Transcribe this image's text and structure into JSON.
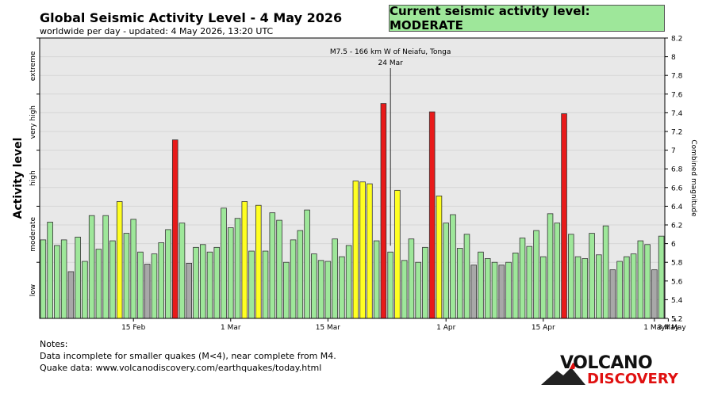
{
  "header": {
    "title": "Global Seismic Activity Level - 4 May 2026",
    "subtitle": "worldwide per day - updated:  4 May 2026, 13:20 UTC",
    "current_level": "Current seismic activity level: MODERATE"
  },
  "notes": {
    "heading": "Notes:",
    "line1": "Data incomplete for smaller quakes (M<4), near complete from M4.",
    "line2": "Quake data: www.volcanodiscovery.com/earthquakes/today.html"
  },
  "logo": {
    "line1": "VOLCANO",
    "line2": "DISCOVERY"
  },
  "colors": {
    "background": "#e8e8e8",
    "low": "#a8a8a8",
    "moderate": "#9ee79a",
    "elevated": "#ffff22",
    "high": "#e81a1a",
    "level_box": "#9ee79a"
  },
  "chart_data": {
    "type": "bar",
    "ylabel": "Activity level",
    "y2label": "Combined magnitude",
    "ylim": [
      5.2,
      8.2
    ],
    "y2_ticks": [
      "5.2",
      "5.4",
      "5.6",
      "5.8",
      "6",
      "6.2",
      "6.4",
      "6.6",
      "6.8",
      "7",
      "7.2",
      "7.4",
      "7.6",
      "7.8",
      "8",
      "8.2"
    ],
    "levels": [
      {
        "label": "low",
        "from": 5.2,
        "to": 5.8
      },
      {
        "label": "moderate",
        "from": 5.8,
        "to": 6.4
      },
      {
        "label": "high",
        "from": 6.4,
        "to": 7.0
      },
      {
        "label": "very high",
        "from": 7.0,
        "to": 7.6
      },
      {
        "label": "extreme",
        "from": 7.6,
        "to": 8.2
      }
    ],
    "x_ticks": [
      {
        "label": "15 Feb",
        "day": 13
      },
      {
        "label": "1 Mar",
        "day": 27
      },
      {
        "label": "15 Mar",
        "day": 41
      },
      {
        "label": "1 Apr",
        "day": 58
      },
      {
        "label": "15 Apr",
        "day": 72
      },
      {
        "label": "1 May",
        "day": 88
      },
      {
        "label": "3 May",
        "day": 90
      },
      {
        "label": "4 May",
        "day": 91
      }
    ],
    "annotation": {
      "text": "M7.5 - 166 km W of Neiafu, Tonga",
      "date": "24 Mar",
      "day": 50
    },
    "values": [
      6.04,
      6.23,
      5.98,
      6.04,
      5.7,
      6.07,
      5.81,
      6.3,
      5.94,
      6.3,
      6.03,
      6.45,
      6.11,
      6.26,
      5.91,
      5.78,
      5.89,
      6.01,
      6.15,
      7.11,
      6.22,
      5.79,
      5.96,
      5.99,
      5.91,
      5.96,
      6.38,
      6.17,
      6.27,
      6.45,
      5.92,
      6.41,
      5.92,
      6.33,
      6.25,
      5.8,
      6.04,
      6.14,
      6.36,
      5.89,
      5.82,
      5.81,
      6.05,
      5.86,
      5.98,
      6.67,
      6.66,
      6.64,
      6.03,
      7.5,
      5.91,
      6.57,
      5.82,
      6.05,
      5.8,
      5.96,
      7.41,
      6.51,
      6.22,
      6.31,
      5.95,
      6.1,
      5.77,
      5.91,
      5.84,
      5.8,
      5.77,
      5.8,
      5.9,
      6.06,
      5.97,
      6.14,
      5.86,
      6.32,
      6.22,
      7.39,
      6.1,
      5.86,
      5.84,
      6.11,
      5.88,
      6.19,
      5.72,
      5.81,
      5.86,
      5.89,
      6.03,
      5.99,
      5.72,
      6.08
    ],
    "categories": [
      "normal",
      "normal",
      "normal",
      "normal",
      "low",
      "normal",
      "normal",
      "normal",
      "normal",
      "normal",
      "normal",
      "elevated",
      "normal",
      "normal",
      "normal",
      "low",
      "normal",
      "normal",
      "normal",
      "high",
      "normal",
      "low",
      "normal",
      "normal",
      "normal",
      "normal",
      "normal",
      "normal",
      "normal",
      "elevated",
      "normal",
      "elevated",
      "normal",
      "normal",
      "normal",
      "normal",
      "normal",
      "normal",
      "normal",
      "normal",
      "normal",
      "normal",
      "normal",
      "normal",
      "normal",
      "elevated",
      "elevated",
      "elevated",
      "normal",
      "high",
      "normal",
      "elevated",
      "normal",
      "normal",
      "normal",
      "normal",
      "high",
      "elevated",
      "normal",
      "normal",
      "normal",
      "normal",
      "low",
      "normal",
      "normal",
      "normal",
      "low",
      "normal",
      "normal",
      "normal",
      "normal",
      "normal",
      "normal",
      "normal",
      "normal",
      "high",
      "normal",
      "normal",
      "normal",
      "normal",
      "normal",
      "normal",
      "low",
      "normal",
      "normal",
      "normal",
      "normal",
      "normal",
      "low",
      "normal"
    ]
  }
}
